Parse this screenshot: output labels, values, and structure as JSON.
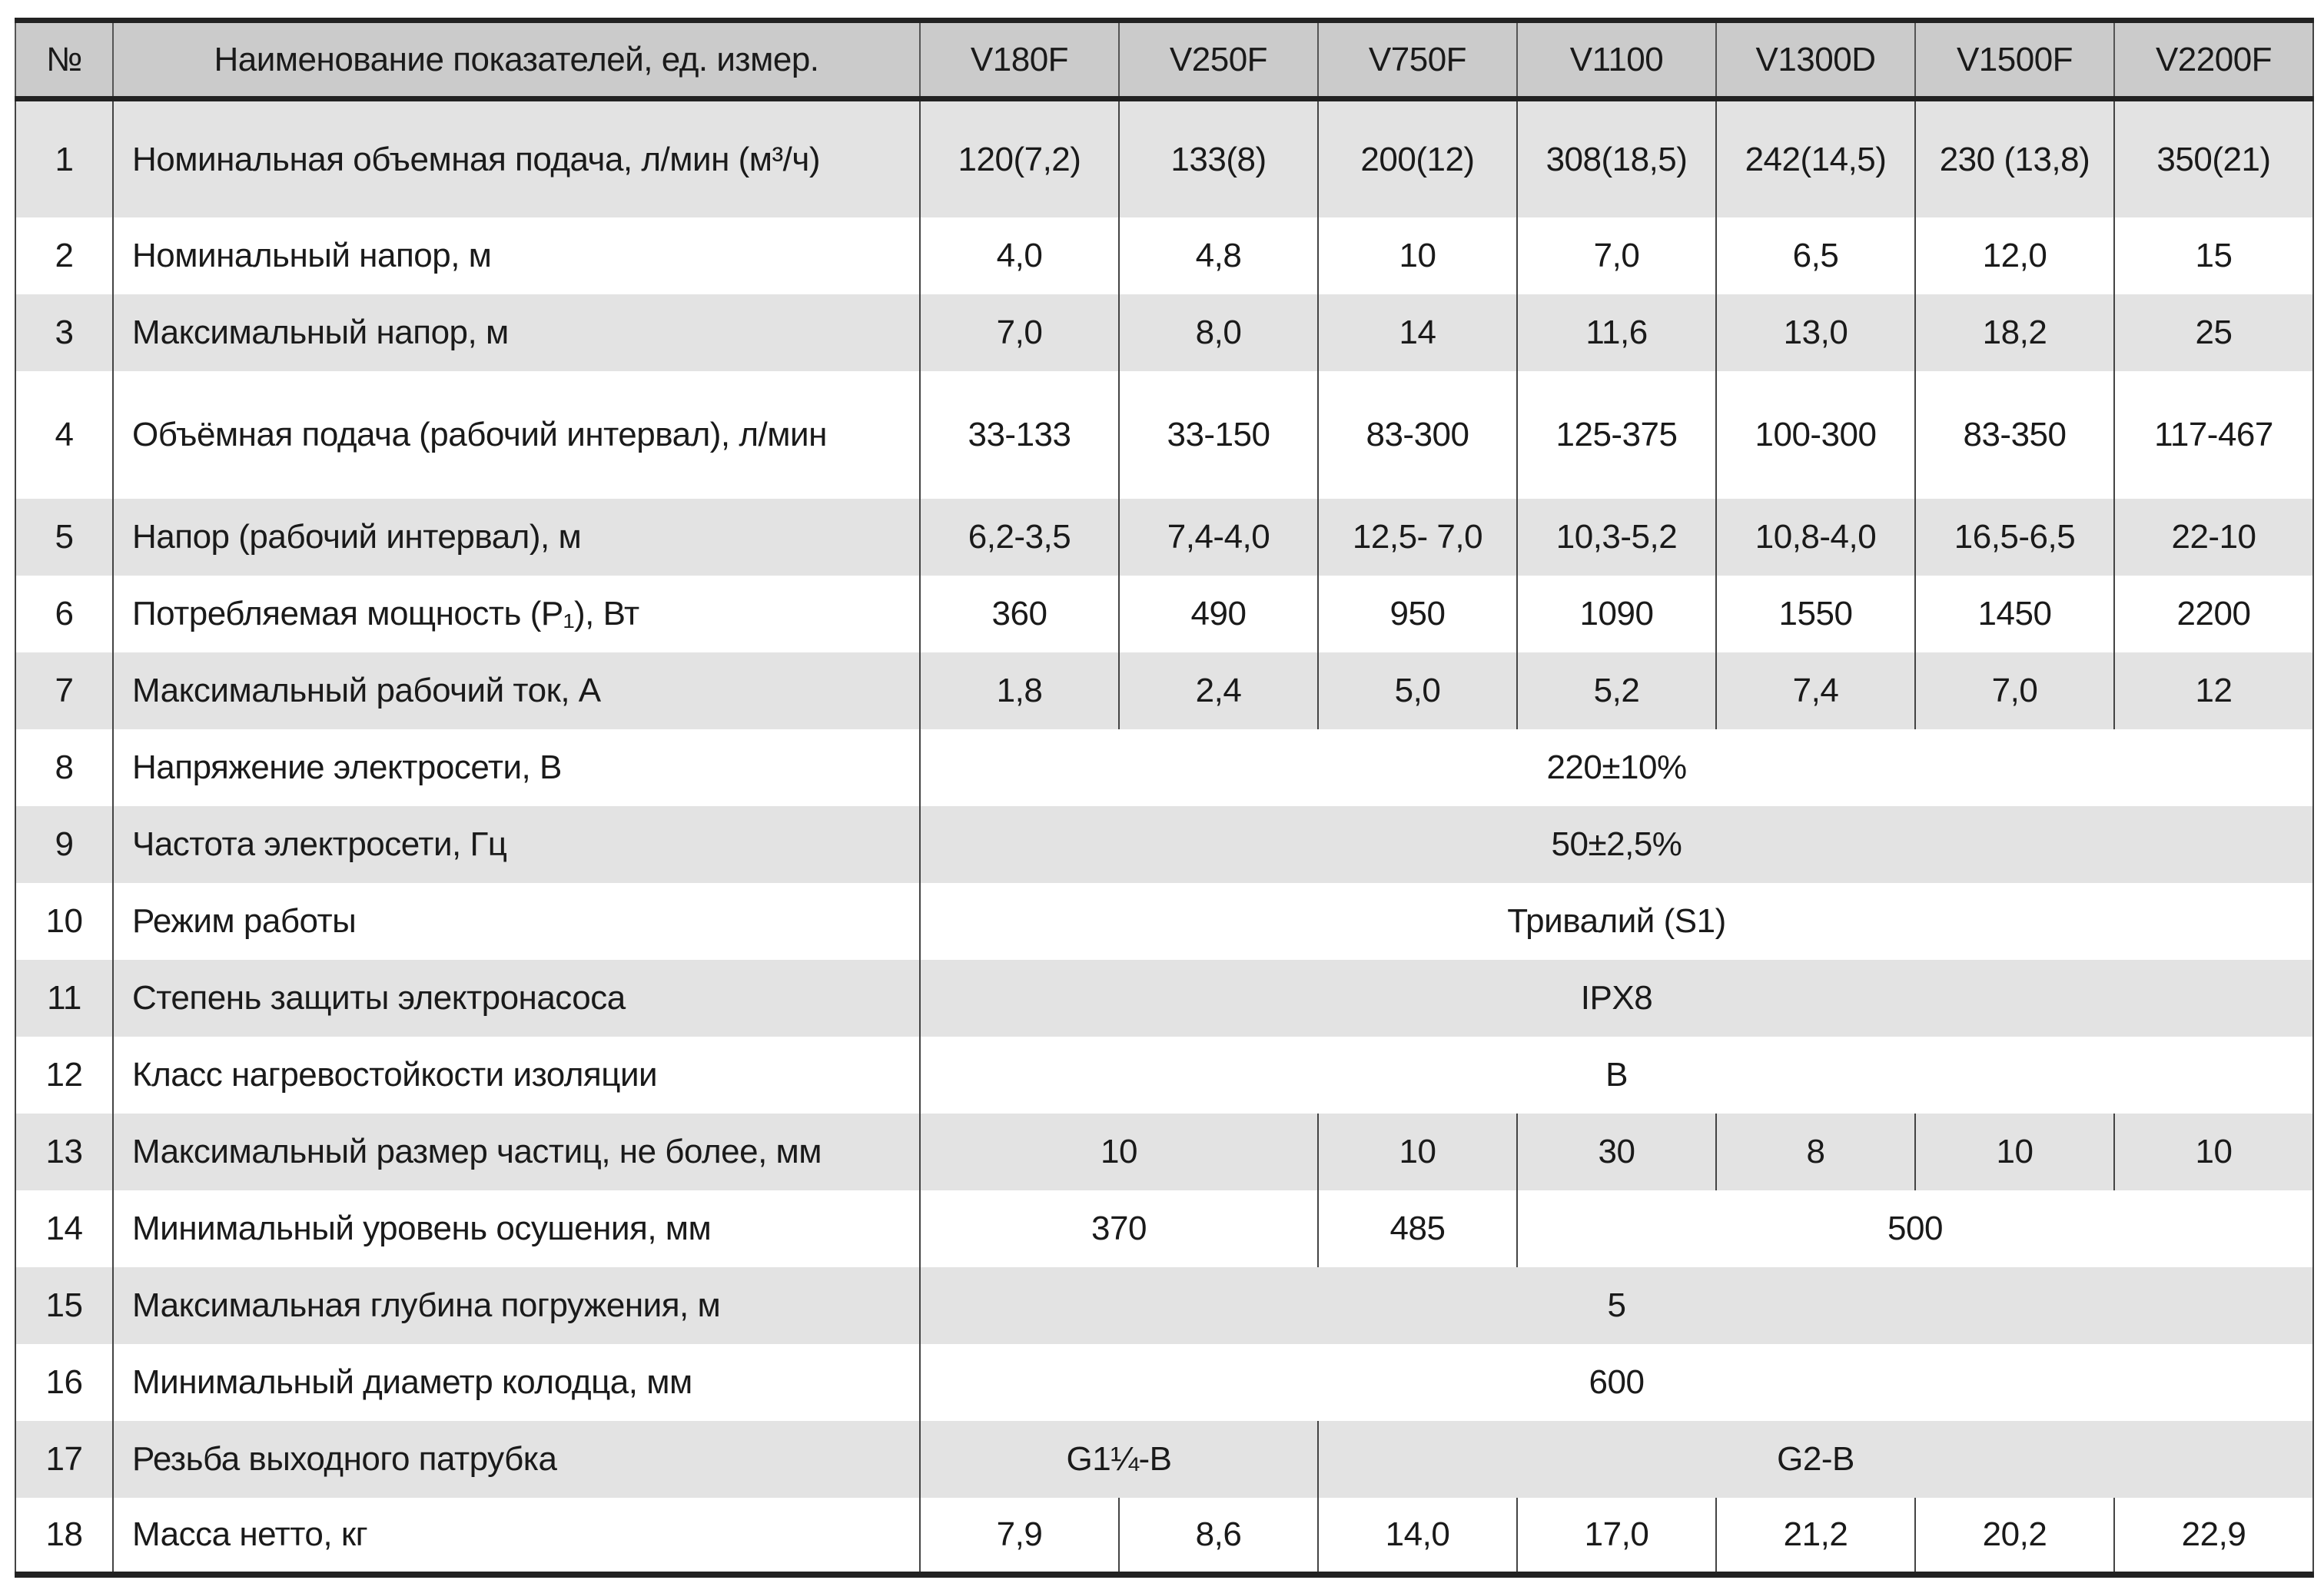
{
  "header": {
    "num": "№",
    "name": "Наименование показателей, ед. измер.",
    "models": [
      "V180F",
      "V250F",
      "V750F",
      "V1100",
      "V1300D",
      "V1500F",
      "V2200F"
    ]
  },
  "rows": [
    {
      "num": "1",
      "label": "Номинальная объемная подача, л/мин (м³/ч)",
      "cells": [
        {
          "text": "120(7,2)",
          "span": 1
        },
        {
          "text": "133(8)",
          "span": 1
        },
        {
          "text": "200(12)",
          "span": 1
        },
        {
          "text": "308(18,5)",
          "span": 1
        },
        {
          "text": "242(14,5)",
          "span": 1
        },
        {
          "text": "230 (13,8)",
          "span": 1
        },
        {
          "text": "350(21)",
          "span": 1
        }
      ]
    },
    {
      "num": "2",
      "label": "Номинальный напор, м",
      "cells": [
        {
          "text": "4,0",
          "span": 1
        },
        {
          "text": "4,8",
          "span": 1
        },
        {
          "text": "10",
          "span": 1
        },
        {
          "text": "7,0",
          "span": 1
        },
        {
          "text": "6,5",
          "span": 1
        },
        {
          "text": "12,0",
          "span": 1
        },
        {
          "text": "15",
          "span": 1
        }
      ]
    },
    {
      "num": "3",
      "label": "Максимальный напор, м",
      "cells": [
        {
          "text": "7,0",
          "span": 1
        },
        {
          "text": "8,0",
          "span": 1
        },
        {
          "text": "14",
          "span": 1
        },
        {
          "text": "11,6",
          "span": 1
        },
        {
          "text": "13,0",
          "span": 1
        },
        {
          "text": "18,2",
          "span": 1
        },
        {
          "text": "25",
          "span": 1
        }
      ]
    },
    {
      "num": "4",
      "label": "Объёмная подача (рабочий интервал), л/мин",
      "cells": [
        {
          "text": "33-133",
          "span": 1
        },
        {
          "text": "33-150",
          "span": 1
        },
        {
          "text": "83-300",
          "span": 1
        },
        {
          "text": "125-375",
          "span": 1
        },
        {
          "text": "100-300",
          "span": 1
        },
        {
          "text": "83-350",
          "span": 1
        },
        {
          "text": "117-467",
          "span": 1
        }
      ]
    },
    {
      "num": "5",
      "label": "Напор (рабочий интервал), м",
      "cells": [
        {
          "text": "6,2-3,5",
          "span": 1
        },
        {
          "text": "7,4-4,0",
          "span": 1
        },
        {
          "text": "12,5- 7,0",
          "span": 1
        },
        {
          "text": "10,3-5,2",
          "span": 1
        },
        {
          "text": "10,8-4,0",
          "span": 1
        },
        {
          "text": "16,5-6,5",
          "span": 1
        },
        {
          "text": "22-10",
          "span": 1
        }
      ]
    },
    {
      "num": "6",
      "label": "Потребляемая мощность (P₁), Вт",
      "cells": [
        {
          "text": "360",
          "span": 1
        },
        {
          "text": "490",
          "span": 1
        },
        {
          "text": "950",
          "span": 1
        },
        {
          "text": "1090",
          "span": 1
        },
        {
          "text": "1550",
          "span": 1
        },
        {
          "text": "1450",
          "span": 1
        },
        {
          "text": "2200",
          "span": 1
        }
      ]
    },
    {
      "num": "7",
      "label": "Максимальный рабочий ток, А",
      "cells": [
        {
          "text": "1,8",
          "span": 1
        },
        {
          "text": "2,4",
          "span": 1
        },
        {
          "text": "5,0",
          "span": 1
        },
        {
          "text": "5,2",
          "span": 1
        },
        {
          "text": "7,4",
          "span": 1
        },
        {
          "text": "7,0",
          "span": 1
        },
        {
          "text": "12",
          "span": 1
        }
      ]
    },
    {
      "num": "8",
      "label": "Напряжение электросети, В",
      "cells": [
        {
          "text": "220±10%",
          "span": 7
        }
      ]
    },
    {
      "num": "9",
      "label": "Частота электросети, Гц",
      "cells": [
        {
          "text": "50±2,5%",
          "span": 7
        }
      ]
    },
    {
      "num": "10",
      "label": "Режим работы",
      "cells": [
        {
          "text": "Тривалий (S1)",
          "span": 7
        }
      ]
    },
    {
      "num": "11",
      "label": "Степень защиты электронасоса",
      "cells": [
        {
          "text": "IPX8",
          "span": 7
        }
      ]
    },
    {
      "num": "12",
      "label": "Класс нагревостойкости изоляции",
      "cells": [
        {
          "text": "B",
          "span": 7
        }
      ]
    },
    {
      "num": "13",
      "label": "Максимальный размер частиц, не более, мм",
      "cells": [
        {
          "text": "10",
          "span": 2
        },
        {
          "text": "10",
          "span": 1
        },
        {
          "text": "30",
          "span": 1
        },
        {
          "text": "8",
          "span": 1
        },
        {
          "text": "10",
          "span": 1
        },
        {
          "text": "10",
          "span": 1
        }
      ]
    },
    {
      "num": "14",
      "label": "Минимальный уровень осушения, мм",
      "cells": [
        {
          "text": "370",
          "span": 2
        },
        {
          "text": "485",
          "span": 1
        },
        {
          "text": "500",
          "span": 4
        }
      ]
    },
    {
      "num": "15",
      "label": "Максимальная глубина погружения, м",
      "cells": [
        {
          "text": "5",
          "span": 7
        }
      ]
    },
    {
      "num": "16",
      "label": "Минимальный диаметр колодца, мм",
      "cells": [
        {
          "text": "600",
          "span": 7
        }
      ]
    },
    {
      "num": "17",
      "label": "Резьба выходного патрубка",
      "cells": [
        {
          "text": "G1¼-B",
          "span": 2
        },
        {
          "text": "G2-B",
          "span": 5
        }
      ]
    },
    {
      "num": "18",
      "label": "Масса нетто, кг",
      "cells": [
        {
          "text": "7,9",
          "span": 1
        },
        {
          "text": "8,6",
          "span": 1
        },
        {
          "text": "14,0",
          "span": 1
        },
        {
          "text": "17,0",
          "span": 1
        },
        {
          "text": "21,2",
          "span": 1
        },
        {
          "text": "20,2",
          "span": 1
        },
        {
          "text": "22,9",
          "span": 1
        }
      ]
    }
  ]
}
